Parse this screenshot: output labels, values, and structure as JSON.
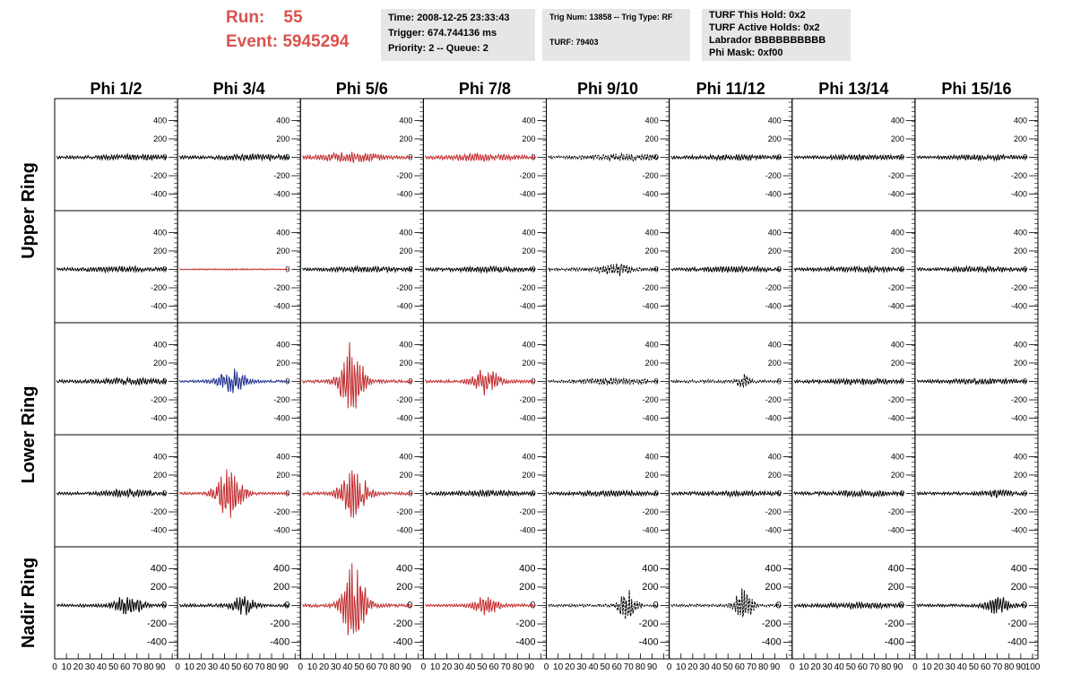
{
  "header": {
    "run_label": "Run:",
    "run_value": "55",
    "event_label": "Event:",
    "event_value": "5945294",
    "time_line": "Time: 2008-12-25 23:33:43",
    "trigger_line": "Trigger: 674.744136 ms",
    "priority_line": "Priority: 2 -- Queue: 2",
    "trig_line": "Trig Num: 13858 -- Trig Type: RF",
    "turf_line": "TURF: 79403",
    "turf_hold_line": "TURF This Hold: 0x2",
    "turf_active_line": "TURF Active Holds: 0x2",
    "labrador_line": "Labrador BBBBBBBBBB",
    "phi_mask_line": "Phi Mask: 0xf00"
  },
  "chart_data": {
    "type": "line",
    "columns": [
      "Phi 1/2",
      "Phi 3/4",
      "Phi 5/6",
      "Phi 7/8",
      "Phi 9/10",
      "Phi 11/12",
      "Phi 13/14",
      "Phi 15/16"
    ],
    "ring_labels": [
      "Upper Ring",
      "Lower Ring",
      "Nadir Ring"
    ],
    "rows": 5,
    "y_ticks": [
      -400,
      -200,
      0,
      200,
      400
    ],
    "ylim": [
      -550,
      550
    ],
    "xlim": [
      0,
      100
    ],
    "x_ticks": [
      0,
      10,
      20,
      30,
      40,
      50,
      60,
      70,
      80,
      90,
      100
    ],
    "x_tick_labels": [
      "0",
      "10",
      "20",
      "30",
      "40",
      "50",
      "60",
      "70",
      "80",
      "90",
      "100"
    ],
    "colors": {
      "black": "#000000",
      "red": "#c0282b",
      "blue": "#1c2a8c",
      "grid": "#000000"
    },
    "panels": [
      [
        {
          "color": "black",
          "amp": 22,
          "center": 72,
          "width": 30,
          "base": 18,
          "style": "solid"
        },
        {
          "color": "black",
          "amp": 25,
          "center": 68,
          "width": 30,
          "base": 18,
          "style": "solid"
        },
        {
          "color": "red",
          "amp": 45,
          "center": 45,
          "width": 25,
          "base": 20,
          "style": "solid"
        },
        {
          "color": "red",
          "amp": 28,
          "center": 50,
          "width": 30,
          "base": 20,
          "style": "solid"
        },
        {
          "color": "black",
          "amp": 25,
          "center": 75,
          "width": 35,
          "base": 18,
          "style": "dashed"
        },
        {
          "color": "black",
          "amp": 20,
          "center": 60,
          "width": 30,
          "base": 18,
          "style": "solid"
        },
        {
          "color": "black",
          "amp": 18,
          "center": 60,
          "width": 30,
          "base": 16,
          "style": "solid"
        },
        {
          "color": "black",
          "amp": 20,
          "center": 60,
          "width": 30,
          "base": 16,
          "style": "solid"
        }
      ],
      [
        {
          "color": "black",
          "amp": 20,
          "center": 60,
          "width": 30,
          "base": 18,
          "style": "solid"
        },
        {
          "color": "red",
          "amp": 6,
          "center": 50,
          "width": 50,
          "base": 3,
          "style": "solid"
        },
        {
          "color": "black",
          "amp": 20,
          "center": 60,
          "width": 30,
          "base": 18,
          "style": "solid"
        },
        {
          "color": "black",
          "amp": 20,
          "center": 60,
          "width": 30,
          "base": 18,
          "style": "solid"
        },
        {
          "color": "black",
          "amp": 55,
          "center": 62,
          "width": 14,
          "base": 20,
          "style": "dashed"
        },
        {
          "color": "black",
          "amp": 22,
          "center": 60,
          "width": 30,
          "base": 18,
          "style": "solid"
        },
        {
          "color": "black",
          "amp": 20,
          "center": 60,
          "width": 30,
          "base": 18,
          "style": "solid"
        },
        {
          "color": "black",
          "amp": 20,
          "center": 60,
          "width": 30,
          "base": 18,
          "style": "solid"
        }
      ],
      [
        {
          "color": "black",
          "amp": 25,
          "center": 65,
          "width": 30,
          "base": 18,
          "style": "solid"
        },
        {
          "color": "blue",
          "amp": 140,
          "center": 48,
          "width": 12,
          "base": 15,
          "style": "solid"
        },
        {
          "color": "red",
          "amp": 460,
          "center": 45,
          "width": 10,
          "base": 20,
          "style": "solid"
        },
        {
          "color": "red",
          "amp": 140,
          "center": 55,
          "width": 12,
          "base": 18,
          "style": "solid"
        },
        {
          "color": "black",
          "amp": 25,
          "center": 60,
          "width": 30,
          "base": 18,
          "style": "dashed"
        },
        {
          "color": "black",
          "amp": 90,
          "center": 65,
          "width": 5,
          "base": 18,
          "style": "dashed"
        },
        {
          "color": "black",
          "amp": 22,
          "center": 60,
          "width": 30,
          "base": 18,
          "style": "solid"
        },
        {
          "color": "black",
          "amp": 20,
          "center": 60,
          "width": 30,
          "base": 18,
          "style": "solid"
        }
      ],
      [
        {
          "color": "black",
          "amp": 40,
          "center": 65,
          "width": 20,
          "base": 18,
          "style": "solid"
        },
        {
          "color": "red",
          "amp": 300,
          "center": 45,
          "width": 12,
          "base": 15,
          "style": "solid"
        },
        {
          "color": "red",
          "amp": 290,
          "center": 47,
          "width": 12,
          "base": 18,
          "style": "solid"
        },
        {
          "color": "black",
          "amp": 25,
          "center": 60,
          "width": 30,
          "base": 18,
          "style": "solid"
        },
        {
          "color": "black",
          "amp": 20,
          "center": 60,
          "width": 30,
          "base": 18,
          "style": "solid"
        },
        {
          "color": "black",
          "amp": 20,
          "center": 60,
          "width": 30,
          "base": 18,
          "style": "solid"
        },
        {
          "color": "black",
          "amp": 20,
          "center": 60,
          "width": 30,
          "base": 18,
          "style": "solid"
        },
        {
          "color": "black",
          "amp": 30,
          "center": 72,
          "width": 14,
          "base": 18,
          "style": "solid"
        }
      ],
      [
        {
          "color": "black",
          "amp": 120,
          "center": 65,
          "width": 12,
          "base": 18,
          "style": "solid"
        },
        {
          "color": "black",
          "amp": 110,
          "center": 58,
          "width": 10,
          "base": 18,
          "style": "solid"
        },
        {
          "color": "red",
          "amp": 500,
          "center": 47,
          "width": 10,
          "base": 20,
          "style": "solid"
        },
        {
          "color": "red",
          "amp": 130,
          "center": 55,
          "width": 10,
          "base": 18,
          "style": "solid"
        },
        {
          "color": "black",
          "amp": 170,
          "center": 72,
          "width": 8,
          "base": 15,
          "style": "dashed"
        },
        {
          "color": "black",
          "amp": 190,
          "center": 66,
          "width": 8,
          "base": 15,
          "style": "dashed"
        },
        {
          "color": "black",
          "amp": 20,
          "center": 60,
          "width": 30,
          "base": 18,
          "style": "solid"
        },
        {
          "color": "black",
          "amp": 110,
          "center": 73,
          "width": 10,
          "base": 18,
          "style": "solid"
        }
      ]
    ]
  }
}
